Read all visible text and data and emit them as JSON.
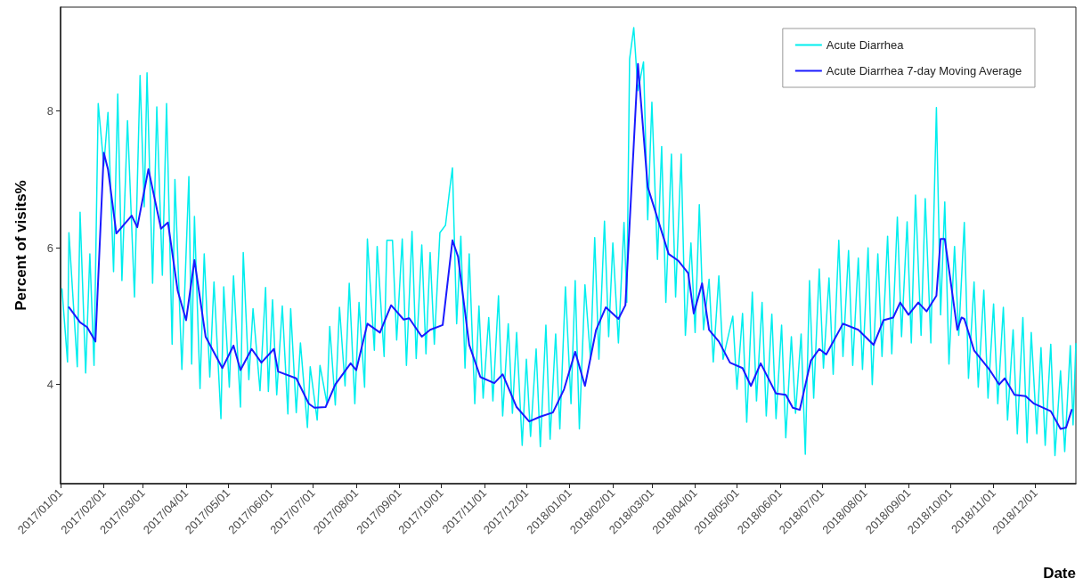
{
  "chart_data": {
    "type": "line",
    "xlabel": "Date",
    "ylabel": "Percent of visits%",
    "xlim": [
      "2017-01-01",
      "2018-12-30"
    ],
    "ylim": [
      2.55,
      9.52
    ],
    "yticks": [
      4,
      6,
      8
    ],
    "xticks": [
      {
        "value": "2017-01-01",
        "label": "2017/01/01"
      },
      {
        "value": "2017-02-01",
        "label": "2017/02/01"
      },
      {
        "value": "2017-03-01",
        "label": "2017/03/01"
      },
      {
        "value": "2017-04-01",
        "label": "2017/04/01"
      },
      {
        "value": "2017-05-01",
        "label": "2017/05/01"
      },
      {
        "value": "2017-06-01",
        "label": "2017/06/01"
      },
      {
        "value": "2017-07-01",
        "label": "2017/07/01"
      },
      {
        "value": "2017-08-01",
        "label": "2017/08/01"
      },
      {
        "value": "2017-09-01",
        "label": "2017/09/01"
      },
      {
        "value": "2017-10-01",
        "label": "2017/10/01"
      },
      {
        "value": "2017-11-01",
        "label": "2017/11/01"
      },
      {
        "value": "2017-12-01",
        "label": "2017/12/01"
      },
      {
        "value": "2018-01-01",
        "label": "2018/01/01"
      },
      {
        "value": "2018-02-01",
        "label": "2018/02/01"
      },
      {
        "value": "2018-03-01",
        "label": "2018/03/01"
      },
      {
        "value": "2018-04-01",
        "label": "2018/04/01"
      },
      {
        "value": "2018-05-01",
        "label": "2018/05/01"
      },
      {
        "value": "2018-06-01",
        "label": "2018/06/01"
      },
      {
        "value": "2018-07-01",
        "label": "2018/07/01"
      },
      {
        "value": "2018-08-01",
        "label": "2018/08/01"
      },
      {
        "value": "2018-09-01",
        "label": "2018/09/01"
      },
      {
        "value": "2018-10-01",
        "label": "2018/10/01"
      },
      {
        "value": "2018-11-01",
        "label": "2018/11/01"
      },
      {
        "value": "2018-12-01",
        "label": "2018/12/01"
      }
    ],
    "legend": "top right",
    "series": [
      {
        "name": "Acute Diarrhea",
        "color": "#00eeee",
        "x": [
          "2017-01-02",
          "2017-01-06",
          "2017-01-07",
          "2017-01-13",
          "2017-01-15",
          "2017-01-19",
          "2017-01-22",
          "2017-01-25",
          "2017-01-28",
          "2017-02-01",
          "2017-02-04",
          "2017-02-08",
          "2017-02-11",
          "2017-02-14",
          "2017-02-18",
          "2017-02-23",
          "2017-02-27",
          "2017-03-02",
          "2017-03-04",
          "2017-03-08",
          "2017-03-11",
          "2017-03-15",
          "2017-03-18",
          "2017-03-22",
          "2017-03-24",
          "2017-03-29",
          "2017-04-03",
          "2017-04-05",
          "2017-04-07",
          "2017-04-11",
          "2017-04-14",
          "2017-04-18",
          "2017-04-21",
          "2017-04-26",
          "2017-04-28",
          "2017-05-02",
          "2017-05-05",
          "2017-05-10",
          "2017-05-12",
          "2017-05-16",
          "2017-05-19",
          "2017-05-24",
          "2017-05-28",
          "2017-05-30",
          "2017-06-02",
          "2017-06-05",
          "2017-06-09",
          "2017-06-13",
          "2017-06-15",
          "2017-06-19",
          "2017-06-22",
          "2017-06-27",
          "2017-06-29",
          "2017-07-04",
          "2017-07-06",
          "2017-07-11",
          "2017-07-13",
          "2017-07-17",
          "2017-07-20",
          "2017-07-24",
          "2017-07-27",
          "2017-07-31",
          "2017-08-03",
          "2017-08-07",
          "2017-08-09",
          "2017-08-14",
          "2017-08-16",
          "2017-08-21",
          "2017-08-23",
          "2017-08-27",
          "2017-08-30",
          "2017-09-03",
          "2017-09-06",
          "2017-09-10",
          "2017-09-13",
          "2017-09-17",
          "2017-09-20",
          "2017-09-23",
          "2017-09-26",
          "2017-09-30",
          "2017-10-04",
          "2017-10-07",
          "2017-10-09",
          "2017-10-12",
          "2017-10-15",
          "2017-10-18",
          "2017-10-21",
          "2017-10-25",
          "2017-10-28",
          "2017-10-31",
          "2017-11-04",
          "2017-11-07",
          "2017-11-11",
          "2017-11-14",
          "2017-11-18",
          "2017-11-21",
          "2017-11-24",
          "2017-11-28",
          "2017-12-01",
          "2017-12-04",
          "2017-12-08",
          "2017-12-11",
          "2017-12-15",
          "2017-12-18",
          "2017-12-22",
          "2017-12-25",
          "2017-12-29",
          "2018-01-02",
          "2018-01-05",
          "2018-01-08",
          "2018-01-12",
          "2018-01-16",
          "2018-01-19",
          "2018-01-22",
          "2018-01-26",
          "2018-01-29",
          "2018-02-01",
          "2018-02-05",
          "2018-02-09",
          "2018-02-11",
          "2018-02-13",
          "2018-02-16",
          "2018-02-19",
          "2018-02-23",
          "2018-02-26",
          "2018-03-01",
          "2018-03-05",
          "2018-03-08",
          "2018-03-11",
          "2018-03-15",
          "2018-03-18",
          "2018-03-22",
          "2018-03-25",
          "2018-03-29",
          "2018-04-01",
          "2018-04-04",
          "2018-04-07",
          "2018-04-11",
          "2018-04-14",
          "2018-04-18",
          "2018-04-21",
          "2018-04-28",
          "2018-05-01",
          "2018-05-05",
          "2018-05-08",
          "2018-05-12",
          "2018-05-15",
          "2018-05-19",
          "2018-05-22",
          "2018-05-26",
          "2018-05-29",
          "2018-06-02",
          "2018-06-05",
          "2018-06-09",
          "2018-06-12",
          "2018-06-16",
          "2018-06-19",
          "2018-06-22",
          "2018-06-25",
          "2018-06-29",
          "2018-07-02",
          "2018-07-06",
          "2018-07-09",
          "2018-07-13",
          "2018-07-16",
          "2018-07-20",
          "2018-07-23",
          "2018-07-27",
          "2018-07-30",
          "2018-08-03",
          "2018-08-06",
          "2018-08-10",
          "2018-08-13",
          "2018-08-17",
          "2018-08-20",
          "2018-08-24",
          "2018-08-27",
          "2018-08-31",
          "2018-09-03",
          "2018-09-06",
          "2018-09-10",
          "2018-09-13",
          "2018-09-17",
          "2018-09-21",
          "2018-09-24",
          "2018-09-27",
          "2018-09-30",
          "2018-10-04",
          "2018-10-07",
          "2018-10-11",
          "2018-10-14",
          "2018-10-18",
          "2018-10-21",
          "2018-10-25",
          "2018-10-28",
          "2018-11-01",
          "2018-11-04",
          "2018-11-08",
          "2018-11-11",
          "2018-11-15",
          "2018-11-18",
          "2018-11-22",
          "2018-11-25",
          "2018-11-28",
          "2018-12-02",
          "2018-12-05",
          "2018-12-08",
          "2018-12-12",
          "2018-12-15",
          "2018-12-19",
          "2018-12-22",
          "2018-12-26",
          "2018-12-28",
          "2018-12-30"
        ],
        "values": [
          5.4,
          4.33,
          6.22,
          4.26,
          6.52,
          4.17,
          5.91,
          4.28,
          8.11,
          7.2,
          7.98,
          5.65,
          8.25,
          5.52,
          7.86,
          5.28,
          8.52,
          6.6,
          8.56,
          5.48,
          8.06,
          5.6,
          8.11,
          4.59,
          7.0,
          4.22,
          7.04,
          4.3,
          6.46,
          3.94,
          5.91,
          4.11,
          5.5,
          3.5,
          5.43,
          3.96,
          5.59,
          3.67,
          5.93,
          4.07,
          5.11,
          3.91,
          5.42,
          3.9,
          5.24,
          3.85,
          5.15,
          3.57,
          5.11,
          3.59,
          4.61,
          3.37,
          4.26,
          3.48,
          4.28,
          3.72,
          4.85,
          3.7,
          5.13,
          3.98,
          5.48,
          3.72,
          5.2,
          3.96,
          6.13,
          4.5,
          6.02,
          4.41,
          6.11,
          6.11,
          4.65,
          6.13,
          4.28,
          6.24,
          4.38,
          6.04,
          4.45,
          5.93,
          4.59,
          6.22,
          6.33,
          6.85,
          7.17,
          4.89,
          6.17,
          4.24,
          5.91,
          3.72,
          5.15,
          3.8,
          4.98,
          3.76,
          5.3,
          3.54,
          4.89,
          3.58,
          4.76,
          3.11,
          4.37,
          3.24,
          4.52,
          3.09,
          4.87,
          3.2,
          4.74,
          3.35,
          5.43,
          3.72,
          5.52,
          3.35,
          5.46,
          4.37,
          6.15,
          4.37,
          6.39,
          4.7,
          6.07,
          4.61,
          6.37,
          5.2,
          8.76,
          9.22,
          8.3,
          8.72,
          6.41,
          8.13,
          5.83,
          7.48,
          5.2,
          7.37,
          5.28,
          7.37,
          4.72,
          6.07,
          4.76,
          6.63,
          4.8,
          5.54,
          4.33,
          5.59,
          4.37,
          5.0,
          3.93,
          5.04,
          3.45,
          5.35,
          3.76,
          5.2,
          3.54,
          5.03,
          3.5,
          4.87,
          3.22,
          4.7,
          3.58,
          4.74,
          2.98,
          5.52,
          3.8,
          5.69,
          4.24,
          5.56,
          4.15,
          6.11,
          4.41,
          5.96,
          4.28,
          5.85,
          4.22,
          6.0,
          4.0,
          5.91,
          4.41,
          6.17,
          4.45,
          6.45,
          4.7,
          6.38,
          4.61,
          6.77,
          4.72,
          6.72,
          4.61,
          8.05,
          5.02,
          6.67,
          4.3,
          6.02,
          4.72,
          6.37,
          4.09,
          5.5,
          3.96,
          5.38,
          3.8,
          5.18,
          3.72,
          5.13,
          3.48,
          4.8,
          3.28,
          4.98,
          3.15,
          4.76,
          3.28,
          4.54,
          3.11,
          4.59,
          2.96,
          4.2,
          3.02,
          4.57,
          3.41,
          4.6
        ]
      },
      {
        "name": "Acute Diarrhea 7-day Moving Average",
        "color": "#1a1aff",
        "x": [
          "2017-01-07",
          "2017-01-15",
          "2017-01-20",
          "2017-01-26",
          "2017-02-01",
          "2017-02-04",
          "2017-02-10",
          "2017-02-21",
          "2017-02-25",
          "2017-03-05",
          "2017-03-14",
          "2017-03-19",
          "2017-03-26",
          "2017-04-01",
          "2017-04-07",
          "2017-04-15",
          "2017-04-27",
          "2017-05-05",
          "2017-05-10",
          "2017-05-18",
          "2017-05-25",
          "2017-06-03",
          "2017-06-06",
          "2017-06-19",
          "2017-06-28",
          "2017-07-02",
          "2017-07-10",
          "2017-07-17",
          "2017-07-28",
          "2017-08-01",
          "2017-08-09",
          "2017-08-18",
          "2017-08-26",
          "2017-09-04",
          "2017-09-08",
          "2017-09-17",
          "2017-09-23",
          "2017-10-02",
          "2017-10-09",
          "2017-10-13",
          "2017-10-21",
          "2017-10-29",
          "2017-11-08",
          "2017-11-14",
          "2017-11-24",
          "2017-12-03",
          "2017-12-11",
          "2017-12-20",
          "2017-12-28",
          "2018-01-05",
          "2018-01-12",
          "2018-01-20",
          "2018-01-27",
          "2018-02-05",
          "2018-02-10",
          "2018-02-19",
          "2018-02-26",
          "2018-03-02",
          "2018-03-13",
          "2018-03-20",
          "2018-03-27",
          "2018-03-31",
          "2018-04-06",
          "2018-04-11",
          "2018-04-18",
          "2018-04-26",
          "2018-05-05",
          "2018-05-11",
          "2018-05-18",
          "2018-05-29",
          "2018-06-05",
          "2018-06-10",
          "2018-06-15",
          "2018-06-23",
          "2018-06-29",
          "2018-07-04",
          "2018-07-16",
          "2018-07-27",
          "2018-08-07",
          "2018-08-14",
          "2018-08-21",
          "2018-08-26",
          "2018-09-01",
          "2018-09-08",
          "2018-09-14",
          "2018-09-21",
          "2018-09-24",
          "2018-09-27",
          "2018-10-06",
          "2018-10-09",
          "2018-10-11",
          "2018-10-18",
          "2018-10-29",
          "2018-11-05",
          "2018-11-09",
          "2018-11-16",
          "2018-11-24",
          "2018-11-30",
          "2018-12-12",
          "2018-12-19",
          "2018-12-23",
          "2018-12-27"
        ],
        "values": [
          5.13,
          4.91,
          4.84,
          4.63,
          7.39,
          7.15,
          6.21,
          6.47,
          6.3,
          7.15,
          6.28,
          6.37,
          5.37,
          4.94,
          5.82,
          4.7,
          4.24,
          4.57,
          4.21,
          4.52,
          4.32,
          4.52,
          4.19,
          4.09,
          3.72,
          3.66,
          3.67,
          4.0,
          4.31,
          4.21,
          4.89,
          4.76,
          5.16,
          4.95,
          4.97,
          4.7,
          4.8,
          4.87,
          6.11,
          5.87,
          4.58,
          4.11,
          4.02,
          4.15,
          3.67,
          3.46,
          3.53,
          3.59,
          3.93,
          4.48,
          3.98,
          4.8,
          5.13,
          4.96,
          5.16,
          8.69,
          6.89,
          6.63,
          5.91,
          5.81,
          5.63,
          5.04,
          5.48,
          4.8,
          4.63,
          4.32,
          4.24,
          3.98,
          4.31,
          3.87,
          3.85,
          3.66,
          3.63,
          4.35,
          4.52,
          4.44,
          4.89,
          4.8,
          4.58,
          4.94,
          4.98,
          5.2,
          5.02,
          5.2,
          5.07,
          5.3,
          6.13,
          6.13,
          4.8,
          4.98,
          4.96,
          4.5,
          4.22,
          4.0,
          4.09,
          3.85,
          3.83,
          3.72,
          3.61,
          3.35,
          3.37,
          3.63
        ]
      }
    ]
  }
}
